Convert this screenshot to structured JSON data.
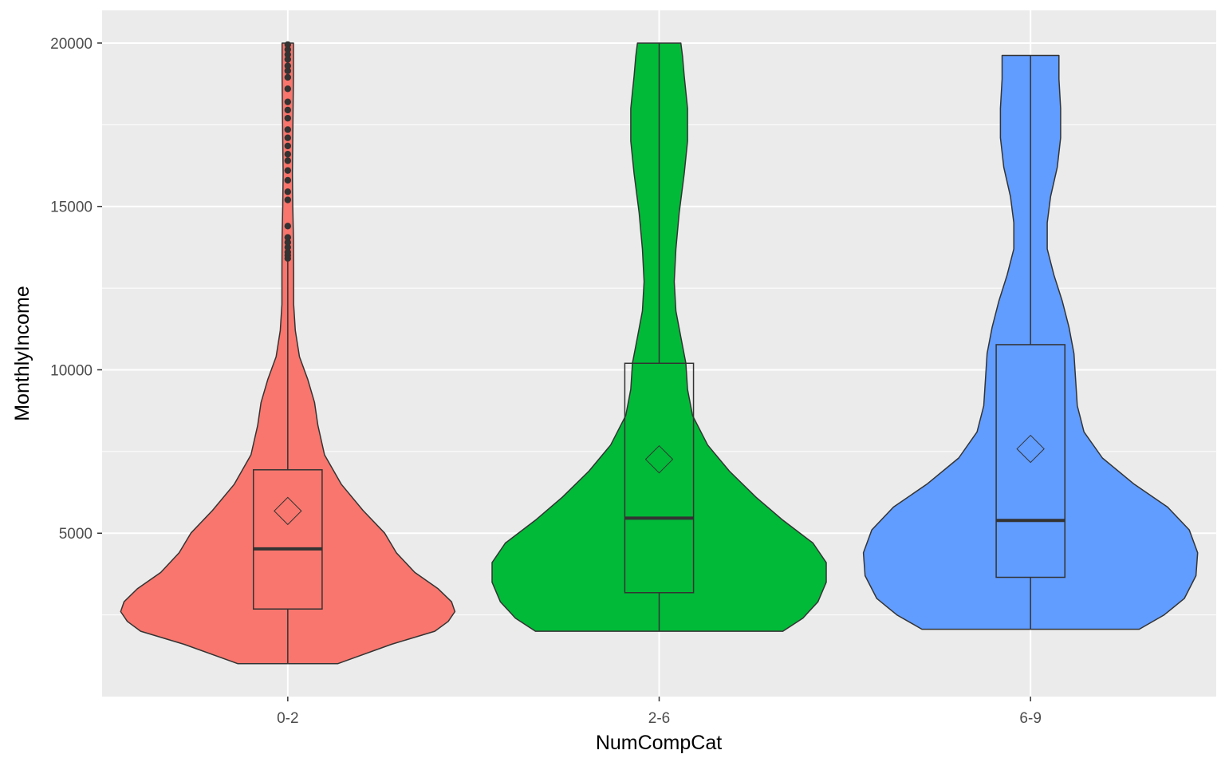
{
  "chart_data": {
    "type": "violin",
    "xlabel": "NumCompCat",
    "ylabel": "MonthlyIncome",
    "categories": [
      "0-2",
      "2-6",
      "6-9"
    ],
    "colors": [
      "#F8766D",
      "#00BA38",
      "#619CFF"
    ],
    "ylim": [
      0,
      21000
    ],
    "y_ticks": [
      5000,
      10000,
      15000,
      20000
    ],
    "y_tick_labels": [
      "5000",
      "10000",
      "15000",
      "20000"
    ],
    "grid": true,
    "background": "#EBEBEB",
    "series": [
      {
        "category": "0-2",
        "min": 1009,
        "q1": 2680,
        "median": 4520,
        "q3": 6940,
        "whisker_high": 13400,
        "max": 19999,
        "mean": 5680,
        "outliers": [
          13410,
          13500,
          13600,
          13750,
          13900,
          14050,
          14400,
          15200,
          15450,
          15800,
          16100,
          16400,
          16600,
          16850,
          17100,
          17350,
          17700,
          17950,
          18200,
          18600,
          18950,
          19150,
          19300,
          19500,
          19650,
          19800,
          19950
        ],
        "density": [
          [
            1009,
            0.3
          ],
          [
            1600,
            0.62
          ],
          [
            2000,
            0.88
          ],
          [
            2300,
            0.96
          ],
          [
            2600,
            1.0
          ],
          [
            2900,
            0.98
          ],
          [
            3300,
            0.9
          ],
          [
            3800,
            0.76
          ],
          [
            4400,
            0.65
          ],
          [
            5000,
            0.58
          ],
          [
            5700,
            0.45
          ],
          [
            6500,
            0.32
          ],
          [
            7400,
            0.22
          ],
          [
            8300,
            0.18
          ],
          [
            9000,
            0.16
          ],
          [
            9700,
            0.12
          ],
          [
            10400,
            0.07
          ],
          [
            11200,
            0.045
          ],
          [
            12000,
            0.035
          ],
          [
            13000,
            0.035
          ],
          [
            14000,
            0.034
          ],
          [
            15000,
            0.03
          ],
          [
            16000,
            0.028
          ],
          [
            17000,
            0.03
          ],
          [
            18000,
            0.032
          ],
          [
            19000,
            0.034
          ],
          [
            19999,
            0.034
          ]
        ]
      },
      {
        "category": "2-6",
        "min": 2000,
        "q1": 3180,
        "median": 5460,
        "q3": 10200,
        "whisker_high": 19999,
        "max": 19999,
        "mean": 7260,
        "density": [
          [
            2000,
            0.74
          ],
          [
            2400,
            0.86
          ],
          [
            2900,
            0.95
          ],
          [
            3500,
            1.0
          ],
          [
            4100,
            1.0
          ],
          [
            4700,
            0.92
          ],
          [
            5400,
            0.74
          ],
          [
            6100,
            0.58
          ],
          [
            6900,
            0.42
          ],
          [
            7700,
            0.29
          ],
          [
            8600,
            0.2
          ],
          [
            9400,
            0.17
          ],
          [
            10200,
            0.16
          ],
          [
            11000,
            0.13
          ],
          [
            11800,
            0.1
          ],
          [
            12700,
            0.09
          ],
          [
            13700,
            0.1
          ],
          [
            14800,
            0.12
          ],
          [
            16000,
            0.15
          ],
          [
            17000,
            0.17
          ],
          [
            18000,
            0.17
          ],
          [
            19000,
            0.15
          ],
          [
            19600,
            0.14
          ],
          [
            19999,
            0.13
          ]
        ]
      },
      {
        "category": "6-9",
        "min": 2060,
        "q1": 3650,
        "median": 5390,
        "q3": 10770,
        "whisker_high": 19620,
        "max": 19620,
        "mean": 7580,
        "density": [
          [
            2060,
            0.65
          ],
          [
            2500,
            0.8
          ],
          [
            3000,
            0.92
          ],
          [
            3700,
            0.99
          ],
          [
            4400,
            1.0
          ],
          [
            5100,
            0.95
          ],
          [
            5800,
            0.82
          ],
          [
            6500,
            0.62
          ],
          [
            7300,
            0.43
          ],
          [
            8100,
            0.32
          ],
          [
            8900,
            0.28
          ],
          [
            9700,
            0.27
          ],
          [
            10500,
            0.26
          ],
          [
            11300,
            0.23
          ],
          [
            12100,
            0.19
          ],
          [
            12900,
            0.14
          ],
          [
            13700,
            0.1
          ],
          [
            14500,
            0.1
          ],
          [
            15300,
            0.12
          ],
          [
            16200,
            0.16
          ],
          [
            17100,
            0.18
          ],
          [
            18000,
            0.18
          ],
          [
            18900,
            0.17
          ],
          [
            19620,
            0.17
          ]
        ]
      }
    ]
  }
}
